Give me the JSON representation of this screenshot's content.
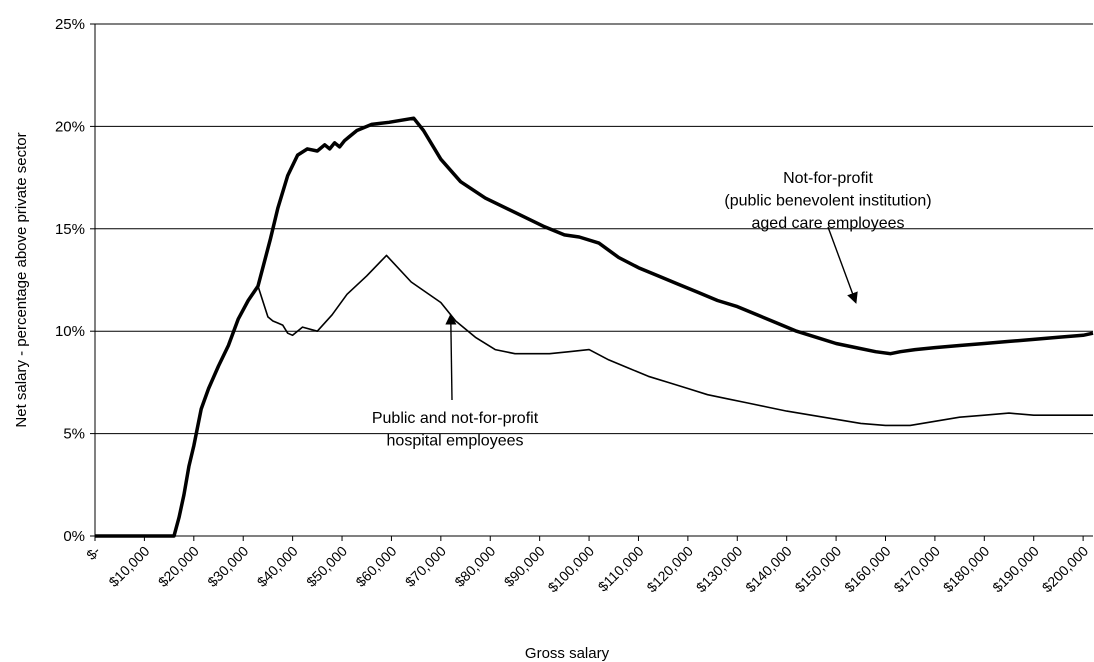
{
  "chart_data": {
    "type": "line",
    "title": "",
    "xlabel": "Gross salary",
    "ylabel": "Net salary - percentage above private sector",
    "xlim": [
      0,
      202000
    ],
    "ylim": [
      0,
      25
    ],
    "grid": "horizontal",
    "yticks": [
      {
        "value": 0,
        "label": "0%"
      },
      {
        "value": 5,
        "label": "5%"
      },
      {
        "value": 10,
        "label": "10%"
      },
      {
        "value": 15,
        "label": "15%"
      },
      {
        "value": 20,
        "label": "20%"
      },
      {
        "value": 25,
        "label": "25%"
      }
    ],
    "xticks": [
      {
        "value": 0,
        "label": "$-"
      },
      {
        "value": 10000,
        "label": "$10,000"
      },
      {
        "value": 20000,
        "label": "$20,000"
      },
      {
        "value": 30000,
        "label": "$30,000"
      },
      {
        "value": 40000,
        "label": "$40,000"
      },
      {
        "value": 50000,
        "label": "$50,000"
      },
      {
        "value": 60000,
        "label": "$60,000"
      },
      {
        "value": 70000,
        "label": "$70,000"
      },
      {
        "value": 80000,
        "label": "$80,000"
      },
      {
        "value": 90000,
        "label": "$90,000"
      },
      {
        "value": 100000,
        "label": "$100,000"
      },
      {
        "value": 110000,
        "label": "$110,000"
      },
      {
        "value": 120000,
        "label": "$120,000"
      },
      {
        "value": 130000,
        "label": "$130,000"
      },
      {
        "value": 140000,
        "label": "$140,000"
      },
      {
        "value": 150000,
        "label": "$150,000"
      },
      {
        "value": 160000,
        "label": "$160,000"
      },
      {
        "value": 170000,
        "label": "$170,000"
      },
      {
        "value": 180000,
        "label": "$180,000"
      },
      {
        "value": 190000,
        "label": "$190,000"
      },
      {
        "value": 200000,
        "label": "$200,000"
      }
    ],
    "series": [
      {
        "color": "#000000",
        "line": "thick",
        "x": [
          0,
          16000,
          17000,
          18000,
          19000,
          20000,
          21500,
          23000,
          25000,
          27000,
          29000,
          31000,
          33000,
          35500,
          37000,
          39000,
          41000,
          43000,
          45000,
          46500,
          47500,
          48500,
          49500,
          50500,
          51500,
          53000,
          56000,
          59500,
          64500,
          66500,
          70000,
          74000,
          79000,
          85000,
          91000,
          95000,
          98000,
          102000,
          106000,
          110000,
          114000,
          118000,
          122000,
          126000,
          130000,
          134000,
          138000,
          142000,
          146000,
          150000,
          154000,
          158000,
          161000,
          163000,
          166000,
          170000,
          175000,
          180000,
          185000,
          190000,
          195000,
          200000,
          202000
        ],
        "y": [
          0,
          0,
          0.9,
          2.0,
          3.4,
          4.4,
          6.2,
          7.2,
          8.3,
          9.3,
          10.6,
          11.5,
          12.2,
          14.5,
          16.0,
          17.6,
          18.6,
          18.9,
          18.8,
          19.1,
          18.9,
          19.2,
          19.0,
          19.3,
          19.5,
          19.8,
          20.1,
          20.2,
          20.4,
          19.8,
          18.4,
          17.3,
          16.5,
          15.8,
          15.1,
          14.7,
          14.6,
          14.3,
          13.6,
          13.1,
          12.7,
          12.3,
          11.9,
          11.5,
          11.2,
          10.8,
          10.4,
          10.0,
          9.7,
          9.4,
          9.2,
          9.0,
          8.9,
          9.0,
          9.1,
          9.2,
          9.3,
          9.4,
          9.5,
          9.6,
          9.7,
          9.8,
          9.9
        ]
      },
      {
        "color": "#000000",
        "line": "thin",
        "x": [
          29000,
          31000,
          33000,
          35000,
          36000,
          37000,
          38000,
          39000,
          40000,
          42000,
          45000,
          48000,
          51000,
          55000,
          59000,
          64000,
          70000,
          73000,
          77000,
          81000,
          85000,
          92000,
          96000,
          100000,
          104000,
          108000,
          112000,
          116000,
          120000,
          124000,
          128000,
          132000,
          136000,
          140000,
          145000,
          150000,
          155000,
          160000,
          165000,
          170000,
          175000,
          180000,
          185000,
          190000,
          195000,
          200000,
          202000
        ],
        "y": [
          10.6,
          11.5,
          12.2,
          10.7,
          10.5,
          10.4,
          10.3,
          9.9,
          9.8,
          10.2,
          10.0,
          10.8,
          11.8,
          12.7,
          13.7,
          12.4,
          11.4,
          10.5,
          9.7,
          9.1,
          8.9,
          8.9,
          9.0,
          9.1,
          8.6,
          8.2,
          7.8,
          7.5,
          7.2,
          6.9,
          6.7,
          6.5,
          6.3,
          6.1,
          5.9,
          5.7,
          5.5,
          5.4,
          5.4,
          5.6,
          5.8,
          5.9,
          6.0,
          5.9,
          5.9,
          5.9,
          5.9
        ]
      }
    ],
    "annotations": [
      {
        "lines": [
          "Not-for-profit",
          "(public benevolent institution)",
          "aged care employees"
        ],
        "arrow_to": {
          "x": 154000,
          "y": 11.4
        }
      },
      {
        "lines": [
          "Public and not-for-profit",
          "hospital employees"
        ],
        "arrow_to": {
          "x": 72000,
          "y": 10.8
        }
      }
    ]
  }
}
